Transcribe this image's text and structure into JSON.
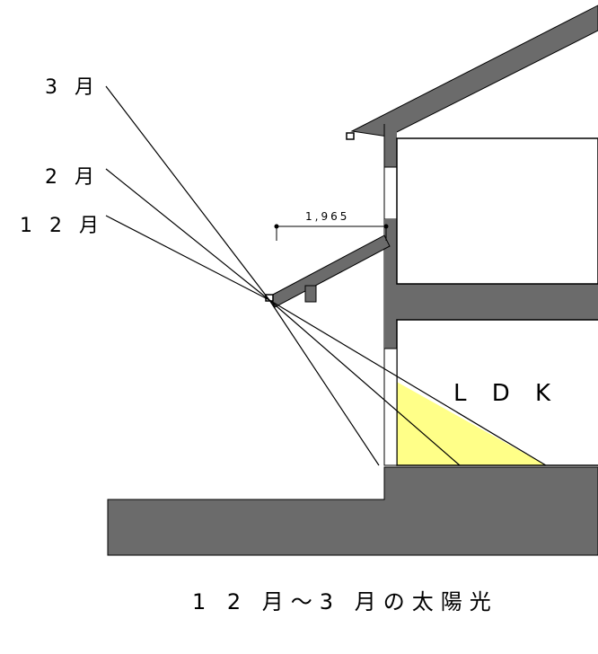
{
  "labels": {
    "march": "3 月",
    "february": "2 月",
    "december": "1 2 月",
    "room": "L D K",
    "dimension": "1,965",
    "caption": "1 2 月〜3 月の太陽光"
  },
  "colors": {
    "structure": "#6b6b6b",
    "sunlight_patch": "#ffff88",
    "line": "#000000",
    "background": "#ffffff"
  }
}
